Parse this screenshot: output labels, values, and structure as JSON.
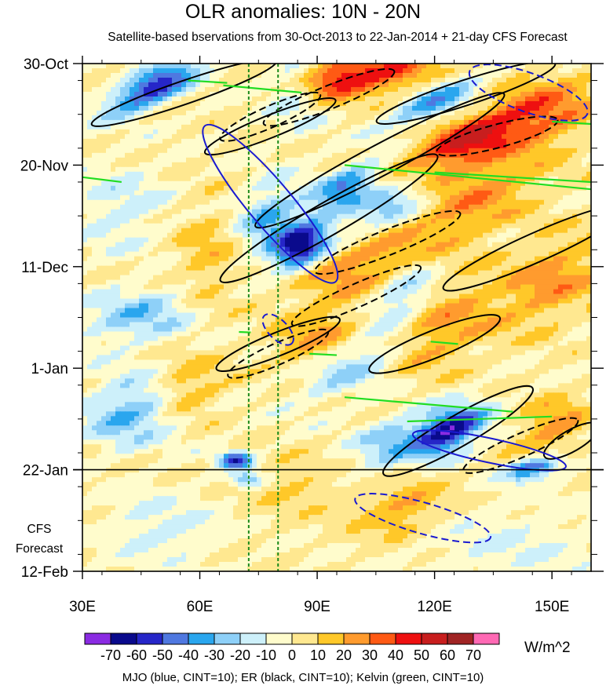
{
  "chart_data": {
    "type": "heatmap",
    "title": "OLR anomalies: 10N - 20N",
    "subtitle": "Satellite-based bservations from 30-Oct-2013 to 22-Jan-2014 + 21-day CFS Forecast",
    "x_range": [
      30,
      160
    ],
    "x_unit": "degrees longitude",
    "x_ticks": [
      {
        "value": 30,
        "label": "30E"
      },
      {
        "value": 60,
        "label": "60E"
      },
      {
        "value": 90,
        "label": "90E"
      },
      {
        "value": 120,
        "label": "120E"
      },
      {
        "value": 150,
        "label": "150E"
      }
    ],
    "y_range_days": [
      0,
      105
    ],
    "y_unit": "days since 30-Oct-2013",
    "y_ticks": [
      {
        "value": 0,
        "label": "30-Oct"
      },
      {
        "value": 21,
        "label": "20-Nov"
      },
      {
        "value": 42,
        "label": "11-Dec"
      },
      {
        "value": 63,
        "label": "1-Jan"
      },
      {
        "value": 84,
        "label": "22-Jan"
      },
      {
        "value": 105,
        "label": "12-Feb"
      }
    ],
    "observation_end_day": 84,
    "forecast_label_lines": [
      "CFS",
      "Forecast"
    ],
    "reference_longitudes": [
      72.5,
      80
    ],
    "units": "W/m^2",
    "colorbar": {
      "levels": [
        -70,
        -60,
        -50,
        -40,
        -30,
        -20,
        -10,
        0,
        10,
        20,
        30,
        40,
        50,
        60,
        70
      ],
      "labels": [
        "-70",
        "-60",
        "-50",
        "-40",
        "-30",
        "-20",
        "-10",
        "0",
        "10",
        "20",
        "30",
        "40",
        "50",
        "60",
        "70"
      ],
      "colors": [
        "#8a2be2",
        "#0a0a8c",
        "#2626c8",
        "#4f78e0",
        "#2aa6ee",
        "#8ed0f8",
        "#cdf0fa",
        "#fffccc",
        "#ffe890",
        "#ffc829",
        "#ff9b2e",
        "#ff5a14",
        "#ee1010",
        "#c81e1e",
        "#a02424",
        "#ff69b4"
      ]
    },
    "legend": "MJO (blue, CINT=10); ER (black, CINT=10); Kelvin (green, CINT=10)",
    "contour_colors": {
      "MJO": "#1a1ad0",
      "ER": "#000000",
      "Kelvin": "#22dd22"
    },
    "anomaly_features": [
      {
        "lon": 48,
        "day": 5,
        "value": -60,
        "dlon": 8,
        "dday": 2.5,
        "tilt": 0.35
      },
      {
        "lon": 85,
        "day": 7,
        "value": -25,
        "dlon": 5,
        "dday": 4,
        "tilt": 0.0
      },
      {
        "lon": 95,
        "day": 3,
        "value": 45,
        "dlon": 8,
        "dday": 3,
        "tilt": 0.3
      },
      {
        "lon": 110,
        "day": 2,
        "value": 35,
        "dlon": 8,
        "dday": 3,
        "tilt": 0.2
      },
      {
        "lon": 120,
        "day": 8,
        "value": -35,
        "dlon": 8,
        "dday": 2.5,
        "tilt": 0.3
      },
      {
        "lon": 128,
        "day": 16,
        "value": 45,
        "dlon": 10,
        "dday": 3.5,
        "tilt": 0.3
      },
      {
        "lon": 148,
        "day": 10,
        "value": 30,
        "dlon": 10,
        "dday": 5,
        "tilt": 0.2
      },
      {
        "lon": 97,
        "day": 26,
        "value": -40,
        "dlon": 6,
        "dday": 3,
        "tilt": 0.4
      },
      {
        "lon": 86,
        "day": 38,
        "value": -70,
        "dlon": 5,
        "dday": 3,
        "tilt": 0.2
      },
      {
        "lon": 78,
        "day": 32,
        "value": -30,
        "dlon": 6,
        "dday": 5,
        "tilt": 0.2
      },
      {
        "lon": 108,
        "day": 30,
        "value": -30,
        "dlon": 8,
        "dday": 3,
        "tilt": 0.3
      },
      {
        "lon": 100,
        "day": 42,
        "value": 25,
        "dlon": 12,
        "dday": 5,
        "tilt": 0.2
      },
      {
        "lon": 130,
        "day": 28,
        "value": 25,
        "dlon": 12,
        "dday": 6,
        "tilt": 0.3
      },
      {
        "lon": 150,
        "day": 45,
        "value": 25,
        "dlon": 10,
        "dday": 6,
        "tilt": 0.3
      },
      {
        "lon": 120,
        "day": 55,
        "value": 25,
        "dlon": 10,
        "dday": 6,
        "tilt": 0.3
      },
      {
        "lon": 100,
        "day": 62,
        "value": -25,
        "dlon": 10,
        "dday": 4,
        "tilt": 0.3
      },
      {
        "lon": 112,
        "day": 48,
        "value": -30,
        "dlon": 6,
        "dday": 4,
        "tilt": 0.3
      },
      {
        "lon": 90,
        "day": 57,
        "value": 22,
        "dlon": 8,
        "dday": 4,
        "tilt": 0.2
      },
      {
        "lon": 57,
        "day": 67,
        "value": 20,
        "dlon": 6,
        "dday": 4,
        "tilt": 0.1
      },
      {
        "lon": 42,
        "day": 72,
        "value": -30,
        "dlon": 8,
        "dday": 5,
        "tilt": 0.1
      },
      {
        "lon": 124,
        "day": 76,
        "value": -65,
        "dlon": 6,
        "dday": 3,
        "tilt": 0.3
      },
      {
        "lon": 145,
        "day": 84,
        "value": -60,
        "dlon": 5,
        "dday": 1.5,
        "tilt": 0.2
      },
      {
        "lon": 110,
        "day": 78,
        "value": -25,
        "dlon": 8,
        "dday": 4,
        "tilt": 0.3
      },
      {
        "lon": 150,
        "day": 75,
        "value": 25,
        "dlon": 6,
        "dday": 4,
        "tilt": 0.2
      },
      {
        "lon": 69,
        "day": 82,
        "value": -55,
        "dlon": 3,
        "dday": 1.2,
        "tilt": 0.0
      },
      {
        "lon": 72,
        "day": 86,
        "value": -50,
        "dlon": 3,
        "dday": 1.2,
        "tilt": 0.0
      },
      {
        "lon": 112,
        "day": 92,
        "value": 30,
        "dlon": 8,
        "dday": 4,
        "tilt": 0.2
      },
      {
        "lon": 85,
        "day": 88,
        "value": 15,
        "dlon": 10,
        "dday": 4,
        "tilt": 0.0
      },
      {
        "lon": 50,
        "day": 96,
        "value": -20,
        "dlon": 10,
        "dday": 5,
        "tilt": 0.0
      },
      {
        "lon": 140,
        "day": 100,
        "value": -15,
        "dlon": 15,
        "dday": 6,
        "tilt": 0.0
      },
      {
        "lon": 45,
        "day": 52,
        "value": -25,
        "dlon": 10,
        "dday": 4,
        "tilt": 0.1
      },
      {
        "lon": 62,
        "day": 40,
        "value": 15,
        "dlon": 6,
        "dday": 8,
        "tilt": 0.1
      },
      {
        "lon": 40,
        "day": 30,
        "value": -15,
        "dlon": 8,
        "dday": 6,
        "tilt": 0.1
      }
    ],
    "contours": [
      {
        "type": "ER",
        "sign": "positive",
        "cx": 56,
        "cy": 6,
        "rx": 25,
        "ry": 2.4,
        "angle": -19
      },
      {
        "type": "ER",
        "sign": "positive",
        "cx": 78,
        "cy": 13,
        "rx": 18,
        "ry": 2.3,
        "angle": -22
      },
      {
        "type": "ER",
        "sign": "positive",
        "cx": 106,
        "cy": 20,
        "rx": 36,
        "ry": 3.2,
        "angle": -28
      },
      {
        "type": "ER",
        "sign": "positive",
        "cx": 93,
        "cy": 32,
        "rx": 32,
        "ry": 3.4,
        "angle": -30
      },
      {
        "type": "ER",
        "sign": "positive",
        "cx": 128,
        "cy": 6,
        "rx": 24,
        "ry": 2.6,
        "angle": -18
      },
      {
        "type": "ER",
        "sign": "positive",
        "cx": 146,
        "cy": 38,
        "rx": 26,
        "ry": 3.0,
        "angle": -24
      },
      {
        "type": "ER",
        "sign": "positive",
        "cx": 120,
        "cy": 58,
        "rx": 18,
        "ry": 2.8,
        "angle": -22
      },
      {
        "type": "ER",
        "sign": "positive",
        "cx": 80,
        "cy": 58,
        "rx": 17,
        "ry": 2.4,
        "angle": -22
      },
      {
        "type": "ER",
        "sign": "positive",
        "cx": 126,
        "cy": 76,
        "rx": 22,
        "ry": 3.2,
        "angle": -30
      },
      {
        "type": "ER",
        "sign": "positive",
        "cx": 155,
        "cy": 78,
        "rx": 8,
        "ry": 2.2,
        "angle": -30
      },
      {
        "type": "ER",
        "sign": "negative",
        "cx": 78,
        "cy": 11,
        "rx": 14,
        "ry": 2.2,
        "angle": -24
      },
      {
        "type": "ER",
        "sign": "negative",
        "cx": 93,
        "cy": 7,
        "rx": 18,
        "ry": 2.4,
        "angle": -22
      },
      {
        "type": "ER",
        "sign": "negative",
        "cx": 136,
        "cy": 15,
        "rx": 16,
        "ry": 2.4,
        "angle": -15
      },
      {
        "type": "ER",
        "sign": "negative",
        "cx": 108,
        "cy": 37,
        "rx": 20,
        "ry": 2.6,
        "angle": -22
      },
      {
        "type": "ER",
        "sign": "negative",
        "cx": 100,
        "cy": 48,
        "rx": 18,
        "ry": 2.4,
        "angle": -24
      },
      {
        "type": "ER",
        "sign": "negative",
        "cx": 80,
        "cy": 60,
        "rx": 14,
        "ry": 2.2,
        "angle": -24
      },
      {
        "type": "ER",
        "sign": "negative",
        "cx": 142,
        "cy": 79,
        "rx": 16,
        "ry": 2.4,
        "angle": -24
      },
      {
        "type": "MJO",
        "sign": "positive",
        "cx": 78,
        "cy": 29,
        "rx": 26,
        "ry": 4.5,
        "angle": 50
      },
      {
        "type": "MJO",
        "sign": "positive",
        "cx": 134,
        "cy": 80,
        "rx": 20,
        "ry": 2.5,
        "angle": 12
      },
      {
        "type": "MJO",
        "sign": "negative",
        "cx": 144,
        "cy": 6,
        "rx": 16,
        "ry": 4.0,
        "angle": 20
      },
      {
        "type": "MJO",
        "sign": "negative",
        "cx": 80,
        "cy": 55,
        "rx": 5,
        "ry": 2.0,
        "angle": 45
      },
      {
        "type": "MJO",
        "sign": "negative",
        "cx": 117,
        "cy": 94,
        "rx": 18,
        "ry": 3.2,
        "angle": 16
      },
      {
        "type": "Kelvin",
        "sign": "positive",
        "x1": 57,
        "y1": 3.5,
        "x2": 67,
        "y2": 4.0
      },
      {
        "type": "Kelvin",
        "sign": "positive",
        "x1": 66,
        "y1": 4.5,
        "x2": 86,
        "y2": 6.0
      },
      {
        "type": "Kelvin",
        "sign": "positive",
        "x1": 30,
        "y1": 23.5,
        "x2": 40,
        "y2": 24.5
      },
      {
        "type": "Kelvin",
        "sign": "positive",
        "x1": 97,
        "y1": 21,
        "x2": 160,
        "y2": 26
      },
      {
        "type": "Kelvin",
        "sign": "positive",
        "x1": 120,
        "y1": 22.5,
        "x2": 160,
        "y2": 24.5
      },
      {
        "type": "Kelvin",
        "sign": "positive",
        "x1": 150,
        "y1": 12,
        "x2": 160,
        "y2": 12.5
      },
      {
        "type": "Kelvin",
        "sign": "positive",
        "x1": 97,
        "y1": 69,
        "x2": 140,
        "y2": 72
      },
      {
        "type": "Kelvin",
        "sign": "positive",
        "x1": 113,
        "y1": 74,
        "x2": 150,
        "y2": 73
      },
      {
        "type": "Kelvin",
        "sign": "positive",
        "x1": 119,
        "y1": 57.5,
        "x2": 126,
        "y2": 58
      },
      {
        "type": "Kelvin",
        "sign": "positive",
        "x1": 88,
        "y1": 60,
        "x2": 95,
        "y2": 60.3
      },
      {
        "type": "Kelvin",
        "sign": "positive",
        "x1": 70,
        "y1": 55.5,
        "x2": 73,
        "y2": 55.6
      }
    ]
  },
  "colors": {
    "axis": "#000000",
    "ref_line": "#1a8a1a"
  }
}
